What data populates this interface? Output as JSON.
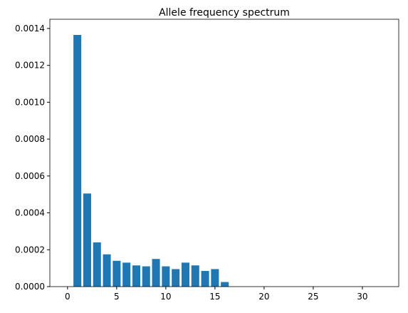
{
  "chart_data": {
    "type": "bar",
    "title": "Allele frequency spectrum",
    "x": [
      1,
      2,
      3,
      4,
      5,
      6,
      7,
      8,
      9,
      10,
      11,
      12,
      13,
      14,
      15,
      16
    ],
    "values": [
      0.001365,
      0.000505,
      0.00024,
      0.000175,
      0.00014,
      0.00013,
      0.000115,
      0.00011,
      0.00015,
      0.00011,
      9.5e-05,
      0.00013,
      0.000115,
      8.5e-05,
      9.5e-05,
      2.5e-05
    ],
    "color": "#1f77b4",
    "bar_width": 0.8,
    "xlim": [
      -1.8,
      33.7
    ],
    "xticks": [
      0,
      5,
      10,
      15,
      20,
      25,
      30
    ],
    "ylim": [
      0,
      0.00145
    ],
    "yticks": [
      {
        "value": 0,
        "label": "0.0000"
      },
      {
        "value": 0.0002,
        "label": "0.0002"
      },
      {
        "value": 0.0004,
        "label": "0.0004"
      },
      {
        "value": 0.0006,
        "label": "0.0006"
      },
      {
        "value": 0.0008,
        "label": "0.0008"
      },
      {
        "value": 0.001,
        "label": "0.0010"
      },
      {
        "value": 0.0012,
        "label": "0.0012"
      },
      {
        "value": 0.0014,
        "label": "0.0014"
      }
    ]
  }
}
